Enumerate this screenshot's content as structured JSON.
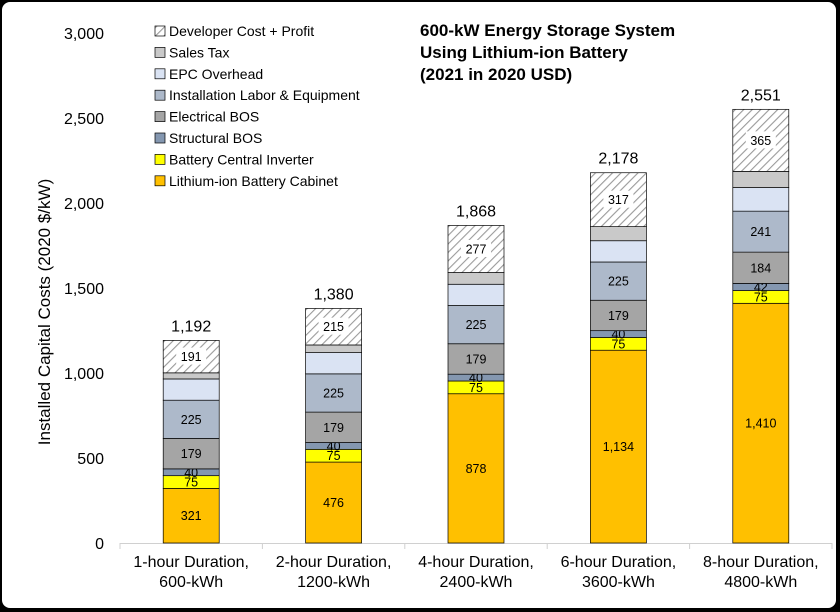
{
  "chart_data": {
    "type": "bar",
    "stacked": true,
    "title_lines": [
      "600-kW Energy Storage System",
      "Using Lithium-ion Battery",
      "(2021 in 2020 USD)"
    ],
    "xlabel": "",
    "ylabel": "Installed Capital Costs (2020 $/kW)",
    "ylim": [
      0,
      3000
    ],
    "yticks": [
      0,
      500,
      1000,
      1500,
      2000,
      2500,
      3000
    ],
    "ytick_labels": [
      "0",
      "500",
      "1,000",
      "1,500",
      "2,000",
      "2,500",
      "3,000"
    ],
    "grid": false,
    "legend_position": "top-left",
    "categories": [
      [
        "1-hour Duration,",
        "600-kWh"
      ],
      [
        "2-hour Duration,",
        "1200-kWh"
      ],
      [
        "4-hour Duration,",
        "2400-kWh"
      ],
      [
        "6-hour Duration,",
        "3600-kWh"
      ],
      [
        "8-hour Duration,",
        "4800-kWh"
      ]
    ],
    "totals": [
      1192,
      1380,
      1868,
      2178,
      2551
    ],
    "total_labels": [
      "1,192",
      "1,380",
      "1,868",
      "2,178",
      "2,551"
    ],
    "series": [
      {
        "name": "Lithium-ion Battery Cabinet",
        "color": "#FFC000",
        "values": [
          321,
          476,
          878,
          1134,
          1410
        ],
        "labels": [
          "321",
          "476",
          "878",
          "1,134",
          "1,410"
        ]
      },
      {
        "name": "Battery Central Inverter",
        "color": "#FFFF00",
        "values": [
          75,
          75,
          75,
          75,
          75
        ],
        "labels": [
          "75",
          "75",
          "75",
          "75",
          "75"
        ]
      },
      {
        "name": "Structural BOS",
        "color": "#8497B0",
        "values": [
          40,
          40,
          40,
          40,
          42
        ],
        "labels": [
          "40",
          "40",
          "40",
          "40",
          "42"
        ]
      },
      {
        "name": "Electrical BOS",
        "color": "#A5A5A5",
        "values": [
          179,
          179,
          179,
          179,
          184
        ],
        "labels": [
          "179",
          "179",
          "179",
          "179",
          "184"
        ]
      },
      {
        "name": "Installation Labor & Equipment",
        "color": "#ADB9CA",
        "values": [
          225,
          225,
          225,
          225,
          241
        ],
        "labels": [
          "225",
          "225",
          "225",
          "225",
          "241"
        ]
      },
      {
        "name": "EPC Overhead",
        "color": "#DAE3F3",
        "values": [
          125,
          125,
          125,
          125,
          139
        ],
        "labels": [
          "",
          "",
          "",
          "",
          ""
        ]
      },
      {
        "name": "Sales Tax",
        "color": "#C9C9C9",
        "values": [
          36,
          45,
          69,
          83,
          95
        ],
        "labels": [
          "",
          "",
          "",
          "",
          ""
        ]
      },
      {
        "name": "Developer Cost + Profit",
        "color": "hatch",
        "values": [
          191,
          215,
          277,
          317,
          365
        ],
        "labels": [
          "191",
          "215",
          "277",
          "317",
          "365"
        ]
      }
    ]
  }
}
